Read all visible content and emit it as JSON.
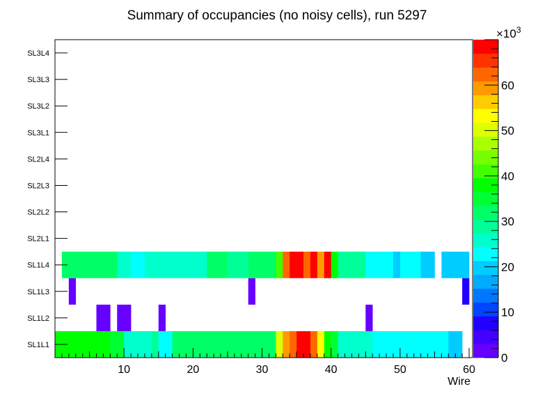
{
  "chart_data": {
    "type": "heatmap",
    "title": "Summary of occupancies (no noisy cells), run 5297",
    "xlabel": "Wire",
    "x_range": [
      0,
      60.5
    ],
    "x_ticks": [
      10,
      20,
      30,
      40,
      50,
      60
    ],
    "y_categories": [
      "SL1L1",
      "SL1L2",
      "SL1L3",
      "SL1L4",
      "SL2L1",
      "SL2L2",
      "SL2L3",
      "SL2L4",
      "SL3L1",
      "SL3L2",
      "SL3L3",
      "SL3L4"
    ],
    "z_range": [
      0,
      70000
    ],
    "z_ticks": [
      0,
      10,
      20,
      30,
      40,
      50,
      60
    ],
    "z_multiplier": "×10",
    "z_multiplier_exp": "3",
    "palette": [
      "#6600ff",
      "#4400ff",
      "#2200ff",
      "#0044ff",
      "#0077ff",
      "#00aaff",
      "#00ccff",
      "#00ffff",
      "#00ffcc",
      "#00ff99",
      "#00ff66",
      "#00ff33",
      "#00ff00",
      "#44ff00",
      "#77ff00",
      "#aaff00",
      "#ddff00",
      "#ffff00",
      "#ffcc00",
      "#ff9900",
      "#ff6600",
      "#ff3300",
      "#ff0000"
    ],
    "rows": [
      {
        "layer": "SL1L1",
        "wires": [
          1,
          2,
          3,
          4,
          5,
          6,
          7,
          8,
          9,
          10,
          11,
          12,
          13,
          14,
          15,
          16,
          17,
          18,
          19,
          20,
          21,
          22,
          23,
          24,
          25,
          26,
          27,
          28,
          29,
          30,
          31,
          32,
          33,
          34,
          35,
          36,
          37,
          38,
          39,
          40,
          41,
          42,
          43,
          44,
          45,
          46,
          47,
          48,
          49,
          50,
          51,
          52,
          53,
          54,
          55,
          56,
          57,
          58,
          59,
          60
        ],
        "values": [
          37000,
          37000,
          37000,
          37000,
          37000,
          37000,
          37000,
          37000,
          35000,
          35000,
          26000,
          26000,
          26000,
          26000,
          29000,
          24000,
          24000,
          32000,
          32000,
          32000,
          32000,
          32000,
          32000,
          32000,
          32000,
          32000,
          32000,
          32000,
          32000,
          32000,
          32000,
          32000,
          49000,
          60000,
          63000,
          70000,
          70000,
          63000,
          52000,
          38000,
          35000,
          26000,
          26000,
          26000,
          26000,
          26000,
          24000,
          24000,
          24000,
          24000,
          24000,
          24000,
          24000,
          24000,
          24000,
          24000,
          24000,
          20000,
          20000,
          null
        ]
      },
      {
        "layer": "SL1L2",
        "wires": [
          7,
          8,
          10,
          11,
          16,
          46
        ],
        "values": [
          3000,
          3000,
          3000,
          3000,
          3000,
          3000
        ]
      },
      {
        "layer": "SL1L3",
        "wires": [
          3,
          29,
          60
        ],
        "values": [
          3000,
          3000,
          7000
        ]
      },
      {
        "layer": "SL1L4",
        "wires": [
          2,
          3,
          4,
          5,
          6,
          7,
          8,
          9,
          10,
          11,
          12,
          13,
          14,
          15,
          16,
          17,
          18,
          19,
          20,
          21,
          22,
          23,
          24,
          25,
          26,
          27,
          28,
          29,
          30,
          31,
          32,
          33,
          34,
          35,
          36,
          37,
          38,
          39,
          40,
          41,
          42,
          43,
          44,
          45,
          46,
          47,
          48,
          49,
          50,
          51,
          52,
          53,
          54,
          55,
          57,
          58,
          59,
          60
        ],
        "values": [
          32000,
          32000,
          32000,
          32000,
          32000,
          32000,
          32000,
          32000,
          26000,
          26000,
          24000,
          24000,
          26000,
          26000,
          26000,
          26000,
          26000,
          26000,
          26000,
          26000,
          26000,
          32000,
          32000,
          32000,
          29000,
          29000,
          29000,
          32000,
          32000,
          32000,
          32000,
          40000,
          62000,
          68000,
          68000,
          63000,
          68000,
          58000,
          68000,
          38000,
          29000,
          29000,
          29000,
          29000,
          24000,
          24000,
          24000,
          24000,
          20000,
          24000,
          24000,
          24000,
          20000,
          20000,
          20000,
          20000,
          20000,
          20000
        ]
      },
      {
        "layer": "SL2L1",
        "wires": [],
        "values": []
      },
      {
        "layer": "SL2L2",
        "wires": [],
        "values": []
      },
      {
        "layer": "SL2L3",
        "wires": [],
        "values": []
      },
      {
        "layer": "SL2L4",
        "wires": [],
        "values": []
      },
      {
        "layer": "SL3L1",
        "wires": [],
        "values": []
      },
      {
        "layer": "SL3L2",
        "wires": [],
        "values": []
      },
      {
        "layer": "SL3L3",
        "wires": [],
        "values": []
      },
      {
        "layer": "SL3L4",
        "wires": [],
        "values": []
      }
    ]
  }
}
